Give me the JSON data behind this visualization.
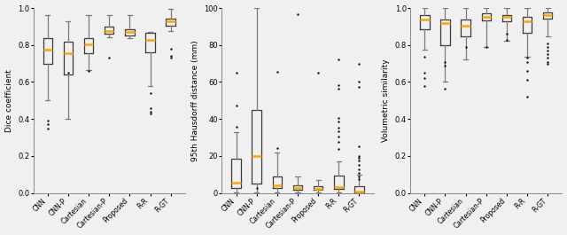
{
  "categories": [
    "CNN",
    "CNN-P",
    "Cartesian",
    "Cartesian-P",
    "Proposed",
    "R-R",
    "R-GT"
  ],
  "dice": {
    "medians": [
      0.775,
      0.755,
      0.805,
      0.875,
      0.87,
      0.83,
      0.93
    ],
    "q1": [
      0.7,
      0.64,
      0.755,
      0.86,
      0.85,
      0.76,
      0.905
    ],
    "q3": [
      0.835,
      0.82,
      0.835,
      0.9,
      0.885,
      0.865,
      0.945
    ],
    "whislo": [
      0.5,
      0.4,
      0.665,
      0.84,
      0.835,
      0.58,
      0.875
    ],
    "whishi": [
      0.96,
      0.93,
      0.96,
      0.96,
      0.96,
      0.87,
      0.995
    ],
    "fliers_x": [
      0,
      0,
      0,
      1,
      2,
      3,
      5,
      5,
      5,
      5,
      6,
      6,
      6
    ],
    "fliers_y": [
      0.37,
      0.39,
      0.35,
      0.65,
      0.66,
      0.73,
      0.54,
      0.46,
      0.44,
      0.43,
      0.78,
      0.74,
      0.73
    ],
    "ylabel": "Dice coefficient",
    "ylim": [
      0.0,
      1.0
    ],
    "yticks": [
      0.0,
      0.2,
      0.4,
      0.6,
      0.8,
      1.0
    ]
  },
  "hausdorff": {
    "medians": [
      5.5,
      20.0,
      4.0,
      2.5,
      2.0,
      3.0,
      1.0
    ],
    "q1": [
      2.5,
      5.0,
      2.5,
      1.5,
      1.5,
      2.0,
      0.5
    ],
    "q3": [
      18.5,
      45.0,
      9.0,
      4.0,
      3.5,
      9.5,
      3.5
    ],
    "whislo": [
      0.2,
      0.5,
      0.5,
      0.5,
      0.5,
      0.5,
      0.2
    ],
    "whishi": [
      33.0,
      100.0,
      22.0,
      9.0,
      7.0,
      17.0,
      10.0
    ],
    "fliers_x": [
      0,
      0,
      0,
      1,
      2,
      2,
      3,
      4,
      5,
      5,
      5,
      5,
      5,
      5,
      5,
      5,
      5,
      5,
      6,
      6,
      6,
      6,
      6,
      6,
      6,
      6,
      6,
      6,
      6,
      6
    ],
    "fliers_y": [
      65.0,
      47.5,
      36.0,
      2.5,
      65.5,
      24.5,
      96.5,
      65.0,
      58.5,
      56.5,
      40.5,
      38.5,
      35.5,
      33.5,
      30.5,
      27.5,
      24.0,
      72.0,
      25.0,
      20.0,
      17.5,
      15.0,
      13.0,
      11.0,
      9.0,
      7.5,
      70.0,
      57.5,
      60.0,
      19.0
    ],
    "ylabel": "95th Hausdorff distance (mm)",
    "ylim": [
      0,
      100
    ],
    "yticks": [
      0,
      20,
      40,
      60,
      80,
      100
    ]
  },
  "volumetric": {
    "medians": [
      0.94,
      0.92,
      0.905,
      0.95,
      0.95,
      0.93,
      0.96
    ],
    "q1": [
      0.885,
      0.8,
      0.845,
      0.935,
      0.93,
      0.865,
      0.945
    ],
    "q3": [
      0.96,
      0.94,
      0.94,
      0.97,
      0.96,
      0.95,
      0.975
    ],
    "whislo": [
      0.775,
      0.6,
      0.72,
      0.79,
      0.825,
      0.735,
      0.845
    ],
    "whishi": [
      1.0,
      1.0,
      1.0,
      1.0,
      1.0,
      1.0,
      1.0
    ],
    "fliers_x": [
      0,
      0,
      0,
      0,
      1,
      1,
      1,
      2,
      3,
      4,
      4,
      5,
      5,
      5,
      5,
      5,
      6,
      6,
      6,
      6,
      6,
      6,
      6
    ],
    "fliers_y": [
      0.735,
      0.65,
      0.62,
      0.58,
      0.565,
      0.69,
      0.71,
      0.79,
      0.79,
      0.86,
      0.83,
      0.61,
      0.52,
      0.66,
      0.71,
      0.73,
      0.79,
      0.75,
      0.71,
      0.81,
      0.77,
      0.73,
      0.7
    ],
    "ylabel": "Volumetric similarity",
    "ylim": [
      0.0,
      1.0
    ],
    "yticks": [
      0.0,
      0.2,
      0.4,
      0.6,
      0.8,
      1.0
    ]
  },
  "box_color": "#3a3a3a",
  "median_color": "#FFA500",
  "whisker_color": "#7a7a7a",
  "cap_color": "#7a7a7a",
  "flier_color": "#111111",
  "background": "#f0f0f0"
}
